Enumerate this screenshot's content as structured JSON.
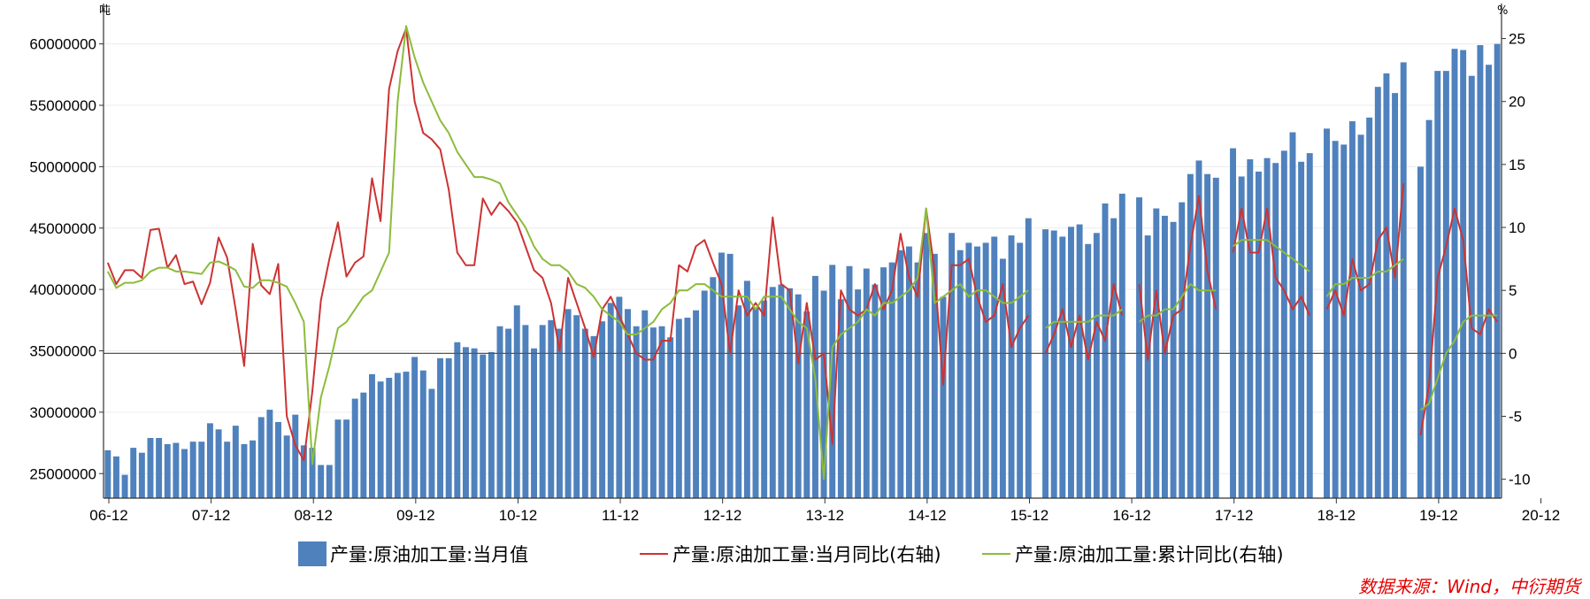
{
  "chart_data": {
    "type": "bar+line",
    "left_axis": {
      "unit": "吨",
      "ylim": [
        23000000,
        63000000
      ],
      "ticks": [
        25000000,
        30000000,
        35000000,
        40000000,
        45000000,
        50000000,
        55000000,
        60000000
      ],
      "tick_labels": [
        "25000000",
        "30000000",
        "35000000",
        "40000000",
        "45000000",
        "50000000",
        "55000000",
        "60000000"
      ]
    },
    "right_axis": {
      "unit": "%",
      "ylim": [
        -11.5,
        27.5
      ],
      "ticks": [
        -10,
        -5,
        0,
        5,
        10,
        15,
        20,
        25
      ],
      "tick_labels": [
        "-10",
        "-5",
        "0",
        "5",
        "10",
        "15",
        "20",
        "25"
      ]
    },
    "x_labels": [
      "06-12",
      "07-12",
      "08-12",
      "09-12",
      "10-12",
      "11-12",
      "12-12",
      "13-12",
      "14-12",
      "15-12",
      "16-12",
      "17-12",
      "18-12",
      "19-12",
      "20-12"
    ],
    "x_start": "2006-12",
    "grid": "horizontal",
    "legend_position": "bottom",
    "series": [
      {
        "name": "产量:原油加工量:当月值",
        "type": "bar",
        "axis": "left",
        "color": "#4f81bd",
        "values": [
          26900000,
          26400000,
          24900000,
          27100000,
          26700000,
          27900000,
          27900000,
          27400000,
          27500000,
          27000000,
          27600000,
          27600000,
          29100000,
          28600000,
          27600000,
          28900000,
          27400000,
          27700000,
          29600000,
          30200000,
          29200000,
          28100000,
          29800000,
          27300000,
          27100000,
          25700000,
          25700000,
          29400000,
          29400000,
          31100000,
          31600000,
          33100000,
          32500000,
          32800000,
          33200000,
          33300000,
          34500000,
          33400000,
          31900000,
          34400000,
          34400000,
          35700000,
          35300000,
          35200000,
          34700000,
          34900000,
          37000000,
          36800000,
          38700000,
          37100000,
          35200000,
          37100000,
          37500000,
          36800000,
          38400000,
          37900000,
          36800000,
          36200000,
          37400000,
          38900000,
          39400000,
          38400000,
          37000000,
          38300000,
          36900000,
          37000000,
          36100000,
          37600000,
          37700000,
          38300000,
          39900000,
          41000000,
          43000000,
          42900000,
          38700000,
          40700000,
          38500000,
          39100000,
          40200000,
          40400000,
          40100000,
          39600000,
          38200000,
          41100000,
          39900000,
          42000000,
          39200000,
          41900000,
          40000000,
          41700000,
          40400000,
          41800000,
          42200000,
          43200000,
          43500000,
          42200000,
          44600000,
          42900000,
          39400000,
          44600000,
          43200000,
          43800000,
          43500000,
          43800000,
          44300000,
          42500000,
          44400000,
          43800000,
          45800000,
          null,
          44900000,
          44800000,
          44300000,
          45100000,
          45300000,
          43700000,
          44600000,
          47000000,
          45800000,
          47800000,
          null,
          47500000,
          44400000,
          46600000,
          46000000,
          45500000,
          47100000,
          49400000,
          50500000,
          49400000,
          49100000,
          null,
          51500000,
          49200000,
          50600000,
          49600000,
          50700000,
          50300000,
          51300000,
          52800000,
          50400000,
          51100000,
          null,
          53100000,
          52100000,
          51800000,
          53700000,
          52600000,
          54000000,
          56500000,
          57600000,
          56000000,
          58500000,
          null,
          50000000,
          53800000,
          57800000,
          57800000,
          59600000,
          59500000,
          57400000,
          59900000,
          58300000,
          60000000
        ]
      },
      {
        "name": "产量:原油加工量:当月同比(右轴)",
        "type": "line",
        "axis": "right",
        "color": "#cc3333",
        "values": [
          7.2,
          5.5,
          6.6,
          6.6,
          6.0,
          9.8,
          9.9,
          6.8,
          7.8,
          5.5,
          5.7,
          3.9,
          5.6,
          9.2,
          7.6,
          3.5,
          -1.0,
          8.7,
          5.4,
          4.7,
          7.1,
          -5.0,
          -7.3,
          -8.5,
          -3.0,
          4.2,
          7.5,
          10.4,
          6.1,
          7.2,
          7.7,
          13.9,
          10.5,
          21.0,
          24.0,
          25.8,
          20.0,
          17.5,
          17.0,
          16.2,
          13.0,
          8.0,
          7.0,
          7.0,
          12.3,
          11.0,
          12.0,
          11.3,
          10.4,
          8.5,
          6.6,
          6.0,
          4.0,
          0.2,
          6.0,
          4.0,
          2.0,
          -0.3,
          3.5,
          4.5,
          3.0,
          1.5,
          0.0,
          -0.5,
          -0.5,
          1.0,
          1.0,
          7.0,
          6.5,
          8.5,
          9.0,
          7.2,
          5.5,
          0.0,
          5.0,
          3.0,
          4.0,
          3.0,
          10.8,
          5.5,
          5.0,
          -0.8,
          4.0,
          -0.5,
          0.0,
          -7.2,
          5.0,
          3.5,
          3.0,
          3.5,
          5.5,
          3.5,
          5.0,
          9.5,
          6.0,
          4.5,
          11.5,
          6.5,
          -2.5,
          7.0,
          7.0,
          7.5,
          4.5,
          2.5,
          3.0,
          5.5,
          0.5,
          2.0,
          3.0,
          null,
          0.0,
          1.5,
          3.5,
          0.5,
          3.0,
          -0.5,
          2.5,
          1.0,
          5.5,
          3.0,
          null,
          5.5,
          -0.5,
          5.0,
          0.0,
          3.0,
          3.5,
          8.5,
          12.5,
          6.5,
          3.5,
          null,
          8.0,
          11.5,
          8.0,
          8.0,
          11.5,
          6.0,
          5.0,
          3.5,
          4.5,
          3.0,
          null,
          3.5,
          5.0,
          3.0,
          7.5,
          5.0,
          5.5,
          9.0,
          10.0,
          6.0,
          13.5,
          null,
          -6.5,
          -2.5,
          6.0,
          8.5,
          11.5,
          9.0,
          2.0,
          1.5,
          3.5,
          2.5
        ]
      },
      {
        "name": "产量:原油加工量:累计同比(右轴)",
        "type": "line",
        "axis": "right",
        "color": "#8cbc3c",
        "values": [
          6.5,
          5.2,
          5.6,
          5.6,
          5.8,
          6.5,
          6.8,
          6.8,
          6.5,
          6.5,
          6.4,
          6.3,
          7.2,
          7.3,
          7.0,
          6.6,
          5.3,
          5.2,
          5.8,
          5.8,
          5.6,
          5.3,
          4.0,
          2.5,
          -8.8,
          -3.5,
          -1.0,
          2.0,
          2.5,
          3.5,
          4.5,
          5.0,
          6.5,
          8.0,
          20.0,
          26.0,
          23.5,
          21.5,
          20.0,
          18.5,
          17.5,
          16.0,
          15.0,
          14.0,
          14.0,
          13.8,
          13.5,
          12.0,
          11.0,
          10.0,
          8.5,
          7.5,
          7.0,
          7.0,
          6.5,
          5.5,
          5.2,
          4.5,
          3.5,
          3.0,
          2.5,
          1.5,
          1.5,
          2.0,
          2.5,
          3.5,
          4.0,
          5.0,
          5.0,
          5.5,
          5.5,
          5.0,
          4.5,
          4.5,
          4.5,
          4.5,
          3.5,
          4.5,
          4.5,
          4.5,
          3.5,
          2.5,
          2.0,
          -2.0,
          -10.0,
          0.5,
          1.5,
          2.0,
          2.5,
          3.5,
          3.0,
          4.0,
          4.0,
          4.5,
          5.0,
          6.0,
          11.5,
          4.0,
          4.5,
          5.0,
          5.5,
          4.5,
          5.0,
          5.0,
          4.5,
          4.0,
          4.0,
          4.5,
          5.0,
          null,
          2.0,
          2.5,
          2.5,
          2.5,
          2.5,
          2.5,
          3.0,
          3.0,
          3.0,
          3.5,
          null,
          2.5,
          3.0,
          3.0,
          3.5,
          3.5,
          4.5,
          5.5,
          5.0,
          5.0,
          5.0,
          null,
          8.5,
          9.0,
          9.0,
          9.0,
          9.0,
          8.5,
          8.0,
          7.5,
          7.0,
          6.5,
          null,
          4.5,
          5.5,
          5.5,
          6.0,
          6.0,
          6.0,
          6.5,
          6.5,
          7.0,
          7.5,
          null,
          -4.5,
          -4.0,
          -2.0,
          0.0,
          1.0,
          2.5,
          3.0,
          3.0,
          3.0,
          3.0
        ]
      }
    ],
    "source": "数据来源：Wind，中衍期货"
  }
}
